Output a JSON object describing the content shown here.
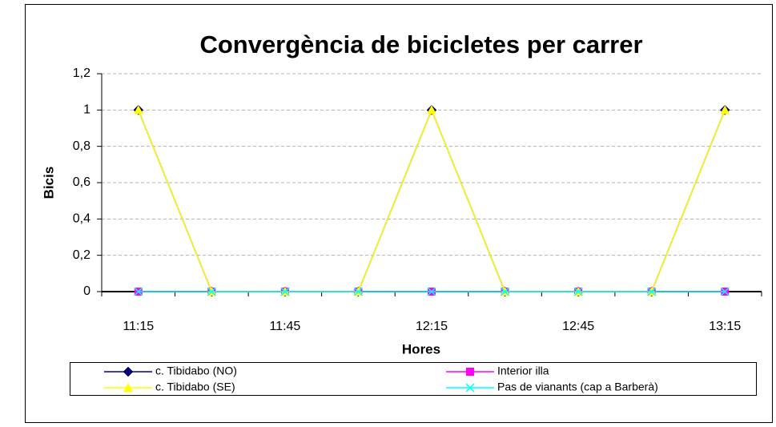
{
  "chart_data": {
    "type": "line",
    "title": "Convergència de bicicletes per carrer",
    "x_label": "Hores",
    "y_label": "Bicis",
    "categories": [
      "11:15",
      null,
      "11:45",
      null,
      "12:15",
      null,
      "12:45",
      null,
      "13:15"
    ],
    "series": [
      {
        "name": "c. Tibidabo (NO)",
        "color": "#000080",
        "marker": "diamond",
        "values": [
          1,
          0,
          0,
          0,
          1,
          0,
          0,
          0,
          1
        ]
      },
      {
        "name": "Interior illa",
        "color": "#ff00ff",
        "marker": "square",
        "values": [
          0,
          0,
          0,
          0,
          0,
          0,
          0,
          0,
          0
        ]
      },
      {
        "name": "c. Tibidabo (SE)",
        "color": "#ffff00",
        "marker": "triangle",
        "values": [
          1,
          0,
          0,
          0,
          1,
          0,
          0,
          0,
          1
        ]
      },
      {
        "name": "Pas de vianants (cap a Barberà)",
        "color": "#00ffff",
        "marker": "x",
        "values": [
          0,
          0,
          0,
          0,
          0,
          0,
          0,
          0,
          0
        ]
      }
    ],
    "ylim": [
      0,
      1.2
    ],
    "yticks": [
      0,
      {
        "value": 0.2,
        "label": "0,2"
      },
      {
        "value": 0.4,
        "label": "0,4"
      },
      {
        "value": 0.6,
        "label": "0,6"
      },
      {
        "value": 0.8,
        "label": "0,8"
      },
      1,
      {
        "value": 1.2,
        "label": "1,2"
      }
    ],
    "grid": true,
    "legend": "bottom"
  }
}
